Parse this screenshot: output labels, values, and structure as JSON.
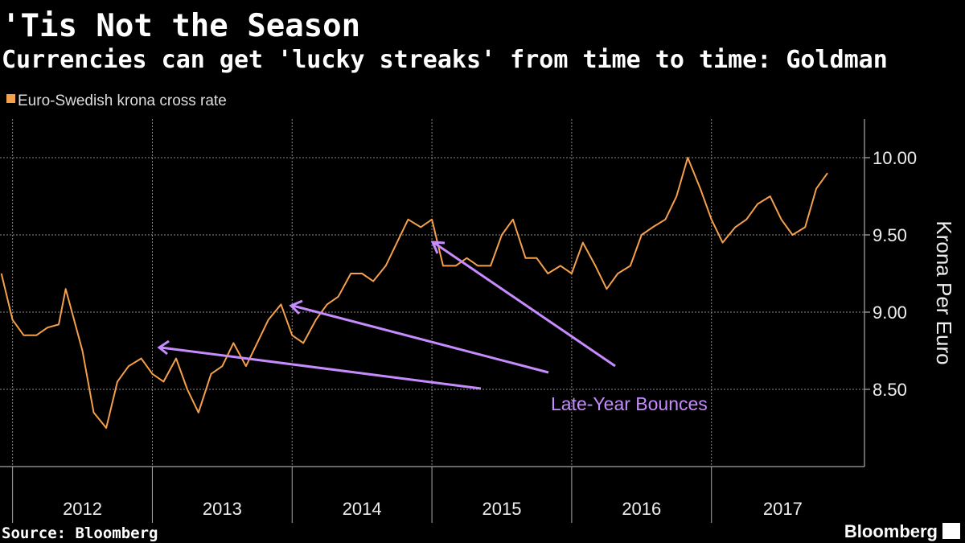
{
  "chart_data": {
    "type": "line",
    "title": "'Tis Not the Season",
    "subtitle": "Currencies can get 'lucky streaks' from time to time: Goldman",
    "y_label": "Krona Per Euro",
    "annotation": "Late-Year Bounces",
    "source": "Source: Bloomberg",
    "brand": "Bloomberg",
    "x": [
      2011.92,
      2012.0,
      2012.08,
      2012.17,
      2012.25,
      2012.33,
      2012.38,
      2012.5,
      2012.58,
      2012.67,
      2012.75,
      2012.83,
      2012.92,
      2013.0,
      2013.08,
      2013.17,
      2013.25,
      2013.33,
      2013.42,
      2013.5,
      2013.58,
      2013.67,
      2013.75,
      2013.83,
      2013.92,
      2014.0,
      2014.08,
      2014.17,
      2014.25,
      2014.33,
      2014.42,
      2014.5,
      2014.58,
      2014.67,
      2014.75,
      2014.83,
      2014.92,
      2015.0,
      2015.08,
      2015.17,
      2015.25,
      2015.33,
      2015.42,
      2015.5,
      2015.58,
      2015.67,
      2015.75,
      2015.83,
      2015.92,
      2016.0,
      2016.08,
      2016.17,
      2016.25,
      2016.33,
      2016.42,
      2016.5,
      2016.58,
      2016.67,
      2016.75,
      2016.83,
      2016.92,
      2017.0,
      2017.08,
      2017.17,
      2017.25,
      2017.33,
      2017.42,
      2017.5,
      2017.58,
      2017.67,
      2017.75,
      2017.83
    ],
    "series": [
      {
        "name": "Euro-Swedish krona cross rate",
        "color": "#f5a04a",
        "values": [
          9.25,
          8.95,
          8.85,
          8.85,
          8.9,
          8.92,
          9.15,
          8.75,
          8.35,
          8.25,
          8.55,
          8.65,
          8.7,
          8.6,
          8.55,
          8.7,
          8.5,
          8.35,
          8.6,
          8.65,
          8.8,
          8.65,
          8.8,
          8.95,
          9.05,
          8.85,
          8.8,
          8.95,
          9.05,
          9.1,
          9.25,
          9.25,
          9.2,
          9.3,
          9.45,
          9.6,
          9.55,
          9.6,
          9.3,
          9.3,
          9.35,
          9.3,
          9.3,
          9.5,
          9.6,
          9.35,
          9.35,
          9.25,
          9.3,
          9.25,
          9.45,
          9.3,
          9.15,
          9.25,
          9.3,
          9.5,
          9.55,
          9.6,
          9.75,
          10.0,
          9.8,
          9.6,
          9.45,
          9.55,
          9.6,
          9.7,
          9.75,
          9.6,
          9.5,
          9.55,
          9.8,
          9.9
        ]
      }
    ],
    "xlim": [
      2011.91,
      2018.02
    ],
    "xticks": [
      2012,
      2013,
      2014,
      2015,
      2016,
      2017
    ],
    "ylim": [
      8.0,
      10.25
    ],
    "yticks": [
      {
        "value": 8.5,
        "label": "8.50"
      },
      {
        "value": 9,
        "label": "9.00"
      },
      {
        "value": 9.5,
        "label": "9.50"
      },
      {
        "value": 10,
        "label": "10.00"
      }
    ],
    "grid": true
  }
}
